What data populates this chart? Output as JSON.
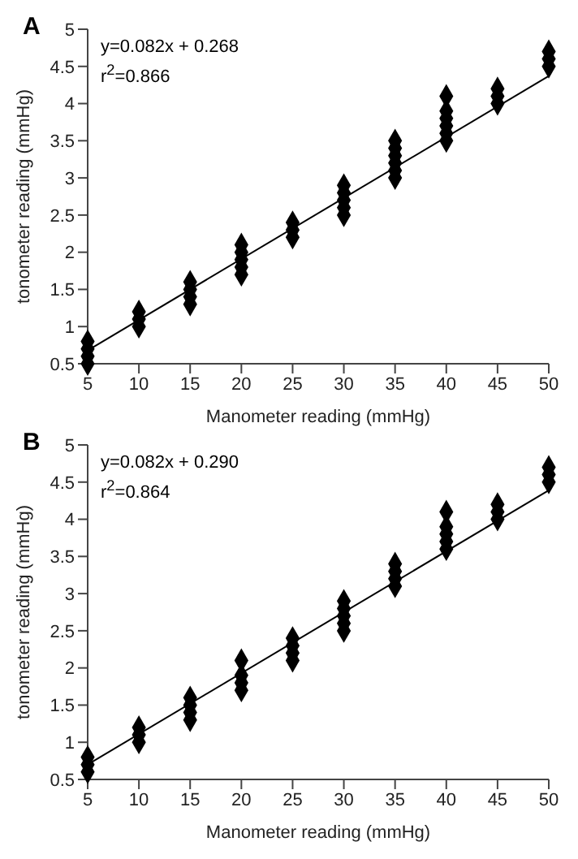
{
  "chart_data": [
    {
      "type": "scatter",
      "title": "A",
      "xlabel": "Manometer reading (mmHg)",
      "ylabel": "tonometer reading (mmHg)",
      "annotations": [
        "y=0.082x + 0.268",
        "r$^{2}$=0.866"
      ],
      "marker": "diamond",
      "xlim": [
        5,
        50
      ],
      "xticks": [
        5,
        10,
        15,
        20,
        25,
        30,
        35,
        40,
        45,
        50
      ],
      "ylim": [
        0.5,
        5
      ],
      "yticks": [
        0.5,
        1,
        1.5,
        2,
        2.5,
        3,
        3.5,
        4,
        4.5,
        5
      ],
      "grid": false,
      "series": [
        {
          "type": "scatter",
          "color": "#000000",
          "x": [
            5,
            5,
            5,
            5,
            10,
            10,
            10,
            15,
            15,
            15,
            15,
            20,
            20,
            20,
            20,
            20,
            25,
            25,
            25,
            30,
            30,
            30,
            30,
            30,
            35,
            35,
            35,
            35,
            35,
            35,
            40,
            40,
            40,
            40,
            40,
            40,
            45,
            45,
            45,
            50,
            50,
            50
          ],
          "values": [
            0.5,
            0.6,
            0.7,
            0.8,
            1.0,
            1.1,
            1.2,
            1.3,
            1.4,
            1.5,
            1.6,
            1.7,
            1.8,
            1.9,
            2.0,
            2.1,
            2.2,
            2.3,
            2.4,
            2.5,
            2.6,
            2.7,
            2.8,
            2.9,
            3.0,
            3.1,
            3.2,
            3.3,
            3.4,
            3.5,
            3.5,
            3.6,
            3.7,
            3.8,
            3.9,
            4.1,
            4.0,
            4.1,
            4.2,
            4.5,
            4.6,
            4.7
          ]
        },
        {
          "type": "line",
          "color": "#000000",
          "line_style": "solid",
          "marker": "none",
          "x": [
            5,
            50
          ],
          "values": [
            0.68,
            4.37
          ]
        }
      ]
    },
    {
      "type": "scatter",
      "title": "B",
      "xlabel": "Manometer reading (mmHg)",
      "ylabel": "tonometer reading (mmHg)",
      "annotations": [
        "y=0.082x + 0.290",
        "r$^{2}$=0.864"
      ],
      "marker": "diamond",
      "xlim": [
        5,
        50
      ],
      "xticks": [
        5,
        10,
        15,
        20,
        25,
        30,
        35,
        40,
        45,
        50
      ],
      "ylim": [
        0.5,
        5
      ],
      "yticks": [
        0.5,
        1,
        1.5,
        2,
        2.5,
        3,
        3.5,
        4,
        4.5,
        5
      ],
      "grid": false,
      "series": [
        {
          "type": "scatter",
          "color": "#000000",
          "x": [
            5,
            5,
            5,
            10,
            10,
            10,
            15,
            15,
            15,
            15,
            20,
            20,
            20,
            20,
            25,
            25,
            25,
            25,
            30,
            30,
            30,
            30,
            30,
            35,
            35,
            35,
            35,
            40,
            40,
            40,
            40,
            40,
            45,
            45,
            45,
            50,
            50,
            50
          ],
          "values": [
            0.6,
            0.7,
            0.8,
            1.0,
            1.1,
            1.2,
            1.3,
            1.4,
            1.5,
            1.6,
            1.7,
            1.8,
            1.9,
            2.1,
            2.1,
            2.2,
            2.3,
            2.4,
            2.5,
            2.6,
            2.7,
            2.8,
            2.9,
            3.1,
            3.2,
            3.3,
            3.4,
            3.6,
            3.7,
            3.8,
            3.9,
            4.1,
            4.0,
            4.1,
            4.2,
            4.5,
            4.6,
            4.7
          ]
        },
        {
          "type": "line",
          "color": "#000000",
          "line_style": "solid",
          "marker": "none",
          "x": [
            5,
            50
          ],
          "values": [
            0.7,
            4.39
          ]
        }
      ]
    }
  ]
}
